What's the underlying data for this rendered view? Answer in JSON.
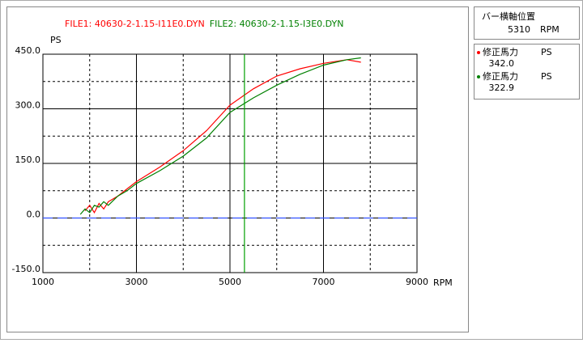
{
  "chart_data": {
    "type": "line",
    "x_label": "RPM",
    "y_label": "PS",
    "x": [
      1800,
      1900,
      2000,
      2100,
      2200,
      2300,
      2400,
      2600,
      2800,
      3000,
      3500,
      4000,
      4500,
      5000,
      5500,
      6000,
      6500,
      7000,
      7500,
      7800
    ],
    "series": [
      {
        "name": "FILE1:  40630-2-1.15-I11E0.DYN",
        "color": "#ff0000",
        "values": [
          null,
          20,
          35,
          15,
          40,
          25,
          45,
          60,
          80,
          100,
          140,
          185,
          240,
          310,
          355,
          390,
          410,
          425,
          435,
          428
        ],
        "readout_name": "修正馬力",
        "readout_unit": "PS",
        "readout_value": 342,
        "readout_label": "342.0"
      },
      {
        "name": "FILE2:  40630-2-1.15-I3E0.DYN",
        "color": "#008000",
        "values": [
          10,
          25,
          15,
          35,
          30,
          45,
          35,
          60,
          75,
          95,
          130,
          170,
          220,
          290,
          330,
          365,
          395,
          420,
          435,
          440
        ],
        "readout_name": "修正馬力",
        "readout_unit": "PS",
        "readout_value": 322.9,
        "readout_label": "322.9"
      }
    ],
    "xlim": [
      1000,
      9000
    ],
    "xticks": [
      1000,
      3000,
      5000,
      7000,
      9000
    ],
    "x_minor_ticks": [
      2000,
      4000,
      6000,
      8000
    ],
    "ylim": [
      -150,
      450
    ],
    "yticks": [
      {
        "value": -150,
        "label": "-150.0"
      },
      {
        "value": 0,
        "label": "0.0"
      },
      {
        "value": 150,
        "label": "150.0"
      },
      {
        "value": 300,
        "label": "300.0"
      },
      {
        "value": 450,
        "label": "450.0"
      }
    ],
    "y_minor_ticks": [
      -75,
      75,
      225,
      375
    ],
    "reference_line": {
      "value": 0,
      "color": "#3050ff"
    },
    "cursor": {
      "title": "バー横軸位置",
      "value": 5310,
      "unit": "RPM",
      "color": "#00a000"
    },
    "grid": true
  }
}
